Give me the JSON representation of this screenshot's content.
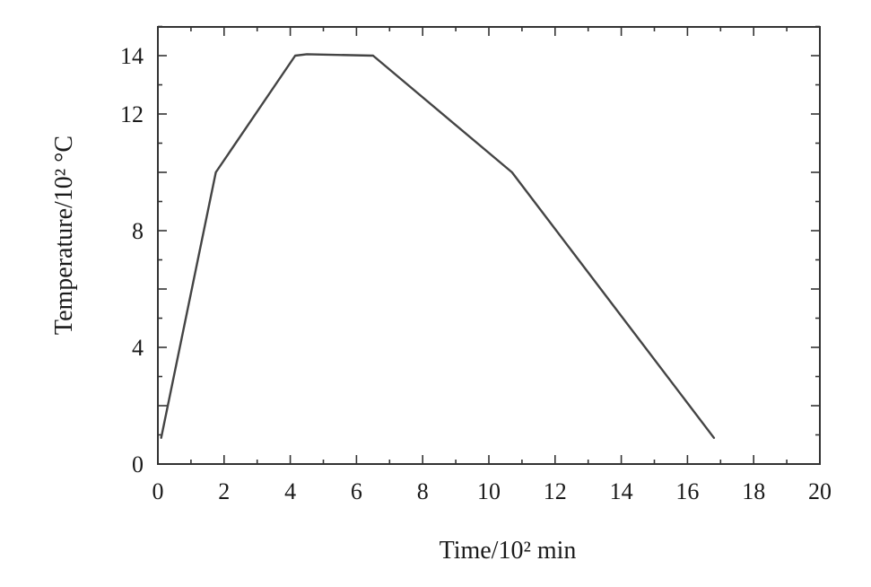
{
  "chart_data": {
    "type": "line",
    "title": "",
    "xlabel": "Time/10² min",
    "ylabel": "Temperature/10² °C",
    "xlim": [
      0,
      20
    ],
    "ylim": [
      0,
      15
    ],
    "x_ticks": [
      0,
      2,
      4,
      6,
      8,
      10,
      12,
      14,
      16,
      18,
      20
    ],
    "x_tick_labels": [
      "0",
      "2",
      "4",
      "6",
      "8",
      "10",
      "12",
      "14",
      "16",
      "18",
      "20"
    ],
    "y_ticks": [
      0,
      4,
      8,
      12,
      14
    ],
    "y_tick_labels": [
      "0",
      "4",
      "8",
      "12",
      "14"
    ],
    "grid": false,
    "legend": "none",
    "series": [
      {
        "x": [
          0.1,
          1.75,
          4.15,
          4.5,
          6.5,
          10.7,
          16.8
        ],
        "y": [
          0.9,
          10.0,
          14.0,
          14.05,
          14.0,
          10.0,
          0.9
        ]
      }
    ]
  }
}
